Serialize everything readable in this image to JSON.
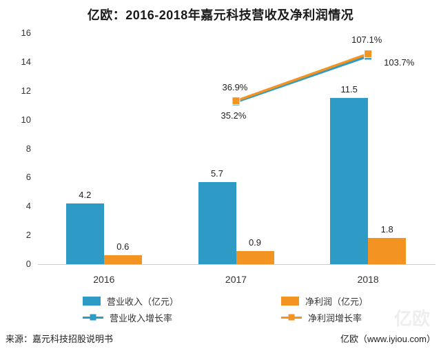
{
  "title": "亿欧：2016-2018年嘉元科技营收及净利润情况",
  "colors": {
    "blue": "#2e9bc6",
    "orange": "#f39322"
  },
  "chart_data": {
    "type": "bar+line",
    "title": "亿欧：2016-2018年嘉元科技营收及净利润情况",
    "categories": [
      "2016",
      "2017",
      "2018"
    ],
    "y_axis": {
      "min": 0,
      "max": 16,
      "step": 2
    },
    "grid": false,
    "legend_position": "bottom",
    "bar_series": [
      {
        "name": "营业收入（亿元）",
        "color": "#2e9bc6",
        "values": [
          4.2,
          5.7,
          11.5
        ]
      },
      {
        "name": "净利润（亿元）",
        "color": "#f39322",
        "values": [
          0.6,
          0.9,
          1.8
        ]
      }
    ],
    "line_series": [
      {
        "name": "营业收入增长率",
        "color": "#2e9bc6",
        "points": [
          {
            "category": "2017",
            "pct": 35.2,
            "label": "35.2%"
          },
          {
            "category": "2018",
            "pct": 103.7,
            "label": "103.7%"
          }
        ]
      },
      {
        "name": "净利润增长率",
        "color": "#f39322",
        "points": [
          {
            "category": "2017",
            "pct": 36.9,
            "label": "36.9%"
          },
          {
            "category": "2018",
            "pct": 107.1,
            "label": "107.1%"
          }
        ]
      }
    ]
  },
  "footer": {
    "source": "来源：嘉元科技招股说明书",
    "brand": "亿欧（www.iyiou.com）",
    "watermark": "亿欧"
  }
}
